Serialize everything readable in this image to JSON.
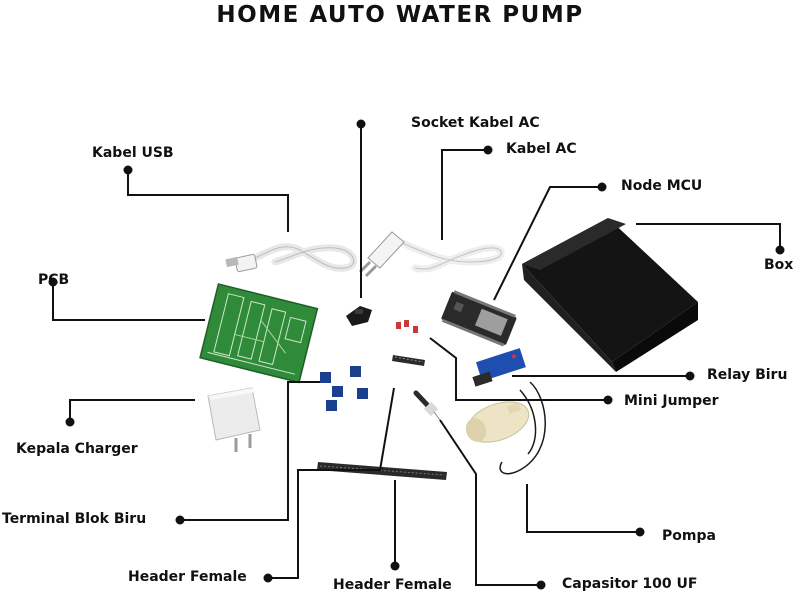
{
  "title": "HOME AUTO WATER PUMP",
  "colors": {
    "background": "#ffffff",
    "line": "#111111",
    "pcb_green": "#2f8a3a",
    "box_black": "#141414",
    "terminal_blue": "#1d3f8f",
    "relay_blue": "#1e4fb0",
    "jumper_red": "#c83a3a",
    "cable_white": "#f2f2f2",
    "pump_cream": "#ece4c4"
  },
  "labels": {
    "socket_kabel_ac": "Socket Kabel AC",
    "kabel_ac": "Kabel AC",
    "kabel_usb": "Kabel USB",
    "node_mcu": "Node MCU",
    "box": "Box",
    "pcb": "PCB",
    "relay_biru": "Relay Biru",
    "mini_jumper": "Mini Jumper",
    "kepala_charger": "Kepala Charger",
    "terminal_blok_biru": "Terminal Blok Biru",
    "pompa": "Pompa",
    "header_female_left": "Header Female",
    "header_female_center": "Header Female",
    "capasitor": "Capasitor 100 UF"
  }
}
